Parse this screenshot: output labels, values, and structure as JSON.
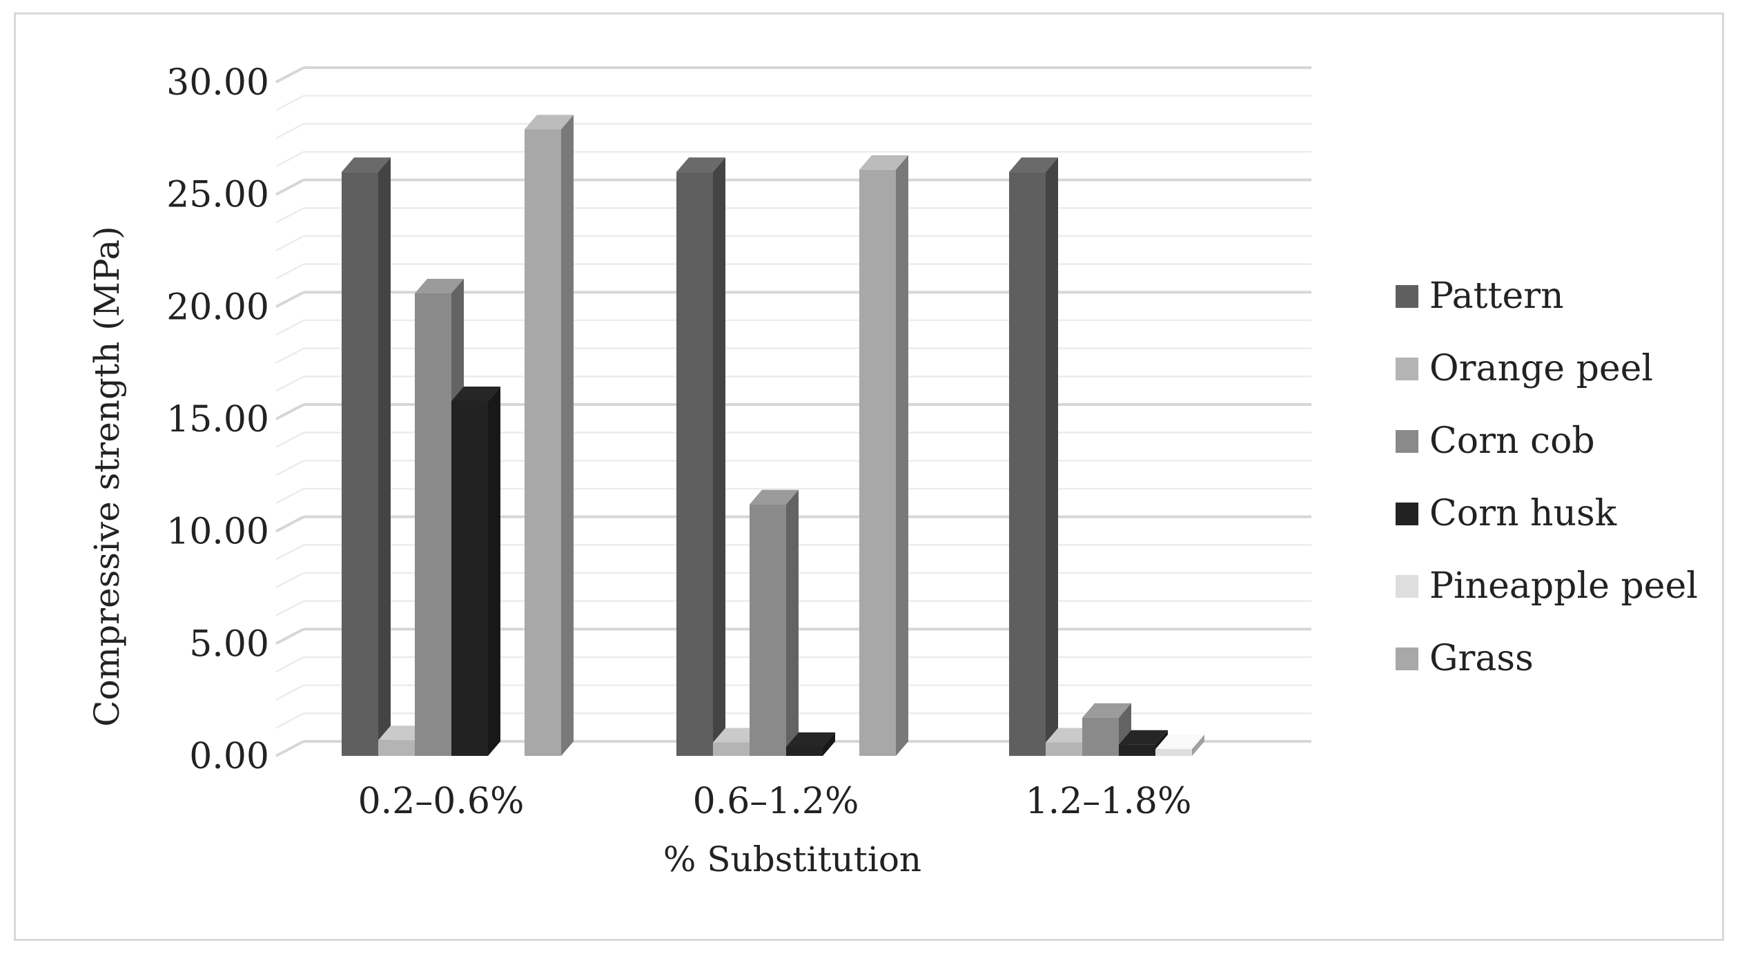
{
  "chart_data": {
    "type": "bar",
    "title": "",
    "xlabel": "% Substitution",
    "ylabel": "Compressive strength (MPa)",
    "ylim": [
      0,
      30
    ],
    "yticks": [
      "0.00",
      "5.00",
      "10.00",
      "15.00",
      "20.00",
      "25.00",
      "30.00"
    ],
    "categories": [
      "0.2–0.6%",
      "0.6–1.2%",
      "1.2–1.8%"
    ],
    "legend_position": "right",
    "grid": true,
    "three_d": true,
    "series": [
      {
        "name": "Pattern",
        "color": "#5f5f5f",
        "values": [
          26.0,
          26.0,
          26.0
        ]
      },
      {
        "name": "Orange peel",
        "color": "#b4b4b4",
        "values": [
          0.7,
          0.6,
          0.6
        ]
      },
      {
        "name": "Corn cob",
        "color": "#8a8a8a",
        "values": [
          20.6,
          11.2,
          1.7
        ]
      },
      {
        "name": "Corn husk",
        "color": "#222222",
        "values": [
          15.8,
          0.4,
          0.5
        ]
      },
      {
        "name": "Pineapple peel",
        "color": "#dedede",
        "values": [
          0,
          0,
          0.3
        ]
      },
      {
        "name": "Grass",
        "color": "#a8a8a8",
        "values": [
          27.9,
          26.1,
          0
        ]
      }
    ]
  }
}
